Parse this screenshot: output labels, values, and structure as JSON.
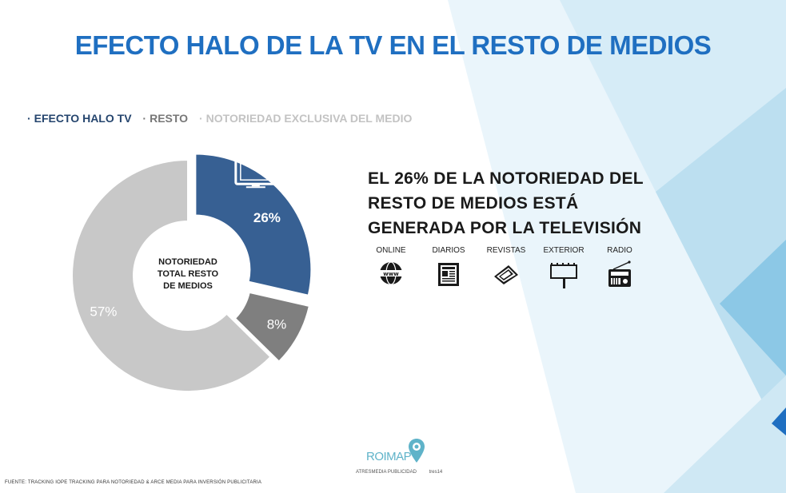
{
  "title": "EFECTO HALO DE LA TV EN EL RESTO DE MEDIOS",
  "legend": [
    {
      "label": "EFECTO HALO TV",
      "color": "#25456e"
    },
    {
      "label": "RESTO",
      "color": "#777777"
    },
    {
      "label": "NOTORIEDAD EXCLUSIVA DEL MEDIO",
      "color": "#c3c3c3"
    }
  ],
  "chart_data": {
    "type": "pie",
    "center_label_lines": [
      "NOTORIEDAD",
      "TOTAL RESTO",
      "DE MEDIOS"
    ],
    "slices": [
      {
        "name": "EFECTO HALO TV",
        "value": 26,
        "label": "26%",
        "color": "#376093",
        "explode": true,
        "icon": "television-icon"
      },
      {
        "name": "RESTO",
        "value": 8,
        "label": "8%",
        "color": "#7f7f7f",
        "explode": true
      },
      {
        "name": "NOTORIEDAD EXCLUSIVA DEL MEDIO",
        "value": 57,
        "label": "57%",
        "color": "#c8c8c8",
        "explode": false
      }
    ]
  },
  "headline_lines": [
    "EL 26% DE LA NOTORIEDAD DEL",
    "RESTO DE MEDIOS ESTÁ",
    "GENERADA POR LA TELEVISIÓN"
  ],
  "media": [
    {
      "label": "ONLINE",
      "icon": "globe-www-icon"
    },
    {
      "label": "DIARIOS",
      "icon": "newspaper-icon"
    },
    {
      "label": "REVISTAS",
      "icon": "magazines-icon"
    },
    {
      "label": "EXTERIOR",
      "icon": "billboard-icon"
    },
    {
      "label": "RADIO",
      "icon": "radio-icon"
    }
  ],
  "source": "FUENTE: TRACKING IOPE TRACKING PARA NOTORIEDAD & ARCE MEDIA PARA INVERSIÓN PUBLICITARIA",
  "logo": {
    "name": "ROIMAP",
    "partners": [
      "ATRESMEDIA PUBLICIDAD",
      "tres14"
    ]
  }
}
